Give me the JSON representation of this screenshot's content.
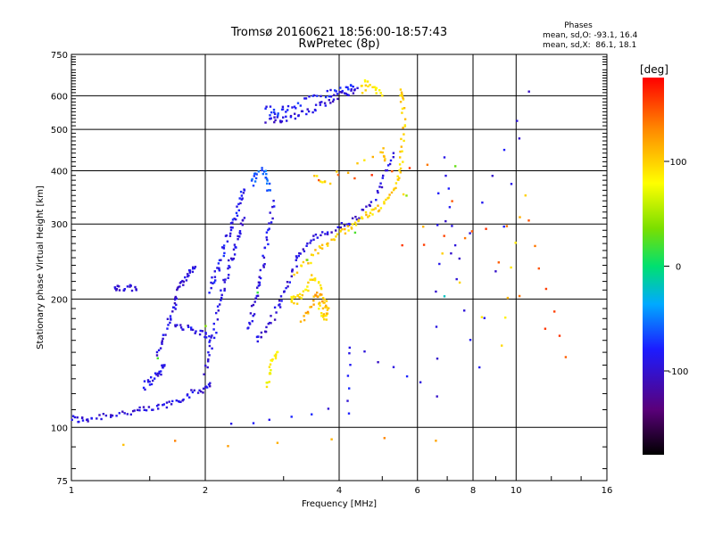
{
  "chart_data": {
    "type": "scatter",
    "title": "Tromsø 20160621 18:56:00-18:57:43",
    "subtitle": "RwPretec (8p)",
    "xlabel": "Frequency [MHz]",
    "ylabel": "Stationary phase Virtual Height [km]",
    "x_scale": "log",
    "y_scale": "log",
    "xlim": [
      1,
      16
    ],
    "ylim": [
      75,
      750
    ],
    "x_ticks": [
      1,
      2,
      4,
      6,
      8,
      10,
      16
    ],
    "x_tick_labels": [
      "1",
      "2",
      "4",
      "6",
      "8",
      "10",
      "16"
    ],
    "y_ticks": [
      75,
      100,
      200,
      300,
      400,
      500,
      600,
      750
    ],
    "y_tick_labels": [
      "75",
      "100",
      "200",
      "300",
      "400",
      "500",
      "600",
      "750"
    ],
    "grid": true,
    "stats": {
      "heading": "Phases",
      "line_o": "mean, sd,O: -93.1, 16.4",
      "line_x": "mean, sd,X:  86.1, 18.1"
    },
    "colorbar": {
      "label": "[deg]",
      "range": [
        -180,
        180
      ],
      "ticks": [
        100,
        0,
        -100
      ],
      "tick_labels": [
        "100",
        "0",
        "-100"
      ]
    },
    "traces": [
      {
        "phase": -95,
        "points": [
          [
            1.0,
            105
          ],
          [
            1.05,
            104
          ],
          [
            1.1,
            105
          ],
          [
            1.2,
            107
          ],
          [
            1.3,
            108
          ],
          [
            1.4,
            109
          ],
          [
            1.5,
            110
          ],
          [
            1.6,
            112
          ],
          [
            1.7,
            115
          ],
          [
            1.8,
            118
          ],
          [
            1.9,
            121
          ],
          [
            2.0,
            124
          ],
          [
            2.05,
            127
          ]
        ]
      },
      {
        "phase": -90,
        "points": [
          [
            1.45,
            125
          ],
          [
            1.5,
            128
          ],
          [
            1.55,
            132
          ],
          [
            1.6,
            136
          ],
          [
            1.62,
            140
          ]
        ]
      },
      {
        "phase": -95,
        "points": [
          [
            1.55,
            148
          ],
          [
            1.6,
            160
          ],
          [
            1.65,
            175
          ],
          [
            1.7,
            190
          ],
          [
            1.72,
            200
          ],
          [
            1.75,
            215
          ],
          [
            1.8,
            225
          ],
          [
            1.85,
            232
          ],
          [
            1.9,
            238
          ]
        ]
      },
      {
        "phase": -95,
        "points": [
          [
            1.25,
            210
          ],
          [
            1.28,
            212
          ],
          [
            1.35,
            212
          ],
          [
            1.4,
            210
          ]
        ]
      },
      {
        "phase": -90,
        "points": [
          [
            1.7,
            175
          ],
          [
            1.8,
            172
          ],
          [
            1.9,
            168
          ],
          [
            2.0,
            165
          ],
          [
            2.05,
            160
          ]
        ]
      },
      {
        "phase": -95,
        "points": [
          [
            2.0,
            135
          ],
          [
            2.05,
            150
          ],
          [
            2.1,
            170
          ],
          [
            2.15,
            195
          ],
          [
            2.2,
            215
          ],
          [
            2.25,
            235
          ],
          [
            2.3,
            250
          ],
          [
            2.35,
            270
          ],
          [
            2.4,
            290
          ],
          [
            2.45,
            310
          ]
        ]
      },
      {
        "phase": -90,
        "points": [
          [
            2.5,
            170
          ],
          [
            2.55,
            185
          ],
          [
            2.6,
            200
          ],
          [
            2.65,
            220
          ],
          [
            2.7,
            240
          ],
          [
            2.75,
            270
          ],
          [
            2.8,
            300
          ],
          [
            2.85,
            340
          ]
        ]
      },
      {
        "phase": -95,
        "points": [
          [
            2.6,
            160
          ],
          [
            2.7,
            165
          ],
          [
            2.8,
            175
          ],
          [
            2.9,
            190
          ],
          [
            3.0,
            205
          ],
          [
            3.1,
            225
          ],
          [
            3.2,
            245
          ],
          [
            3.3,
            262
          ],
          [
            3.5,
            275
          ],
          [
            3.7,
            285
          ],
          [
            4.0,
            295
          ],
          [
            4.3,
            305
          ],
          [
            4.6,
            325
          ],
          [
            4.9,
            355
          ],
          [
            5.1,
            395
          ],
          [
            5.3,
            440
          ]
        ]
      },
      {
        "phase": -95,
        "points": [
          [
            2.75,
            520
          ],
          [
            2.9,
            525
          ],
          [
            3.0,
            530
          ],
          [
            3.2,
            540
          ],
          [
            3.4,
            555
          ],
          [
            3.6,
            568
          ],
          [
            3.8,
            585
          ],
          [
            4.0,
            600
          ],
          [
            4.2,
            615
          ],
          [
            4.4,
            625
          ]
        ]
      },
      {
        "phase": -80,
        "points": [
          [
            2.75,
            560
          ],
          [
            2.85,
            545
          ],
          [
            3.0,
            555
          ],
          [
            3.2,
            570
          ],
          [
            3.5,
            590
          ],
          [
            3.8,
            610
          ],
          [
            4.1,
            620
          ],
          [
            4.3,
            630
          ]
        ]
      },
      {
        "phase": -60,
        "points": [
          [
            2.55,
            370
          ],
          [
            2.6,
            390
          ],
          [
            2.7,
            400
          ],
          [
            2.75,
            380
          ],
          [
            2.8,
            360
          ]
        ]
      },
      {
        "phase": -85,
        "points": [
          [
            2.05,
            210
          ],
          [
            2.1,
            225
          ],
          [
            2.15,
            240
          ],
          [
            2.2,
            262
          ],
          [
            2.25,
            280
          ],
          [
            2.3,
            300
          ],
          [
            2.35,
            320
          ],
          [
            2.4,
            345
          ],
          [
            2.45,
            360
          ]
        ]
      },
      {
        "phase": 95,
        "points": [
          [
            3.1,
            200
          ],
          [
            3.2,
            198
          ],
          [
            3.3,
            205
          ],
          [
            3.4,
            215
          ],
          [
            3.5,
            225
          ],
          [
            3.6,
            215
          ],
          [
            3.7,
            200
          ],
          [
            3.8,
            185
          ],
          [
            3.7,
            180
          ],
          [
            3.6,
            195
          ]
        ]
      },
      {
        "phase": 100,
        "points": [
          [
            3.2,
            230
          ],
          [
            3.4,
            245
          ],
          [
            3.6,
            262
          ],
          [
            3.8,
            272
          ],
          [
            4.0,
            285
          ],
          [
            4.2,
            295
          ],
          [
            4.4,
            305
          ],
          [
            4.6,
            315
          ],
          [
            4.8,
            320
          ],
          [
            5.0,
            330
          ],
          [
            5.2,
            350
          ],
          [
            5.4,
            375
          ],
          [
            5.5,
            410
          ],
          [
            5.55,
            460
          ],
          [
            5.6,
            520
          ],
          [
            5.55,
            580
          ],
          [
            5.5,
            620
          ]
        ]
      },
      {
        "phase": 115,
        "points": [
          [
            3.3,
            180
          ],
          [
            3.45,
            190
          ],
          [
            3.55,
            205
          ],
          [
            3.65,
            200
          ],
          [
            3.75,
            185
          ]
        ]
      },
      {
        "phase": 80,
        "points": [
          [
            2.75,
            125
          ],
          [
            2.8,
            135
          ],
          [
            2.85,
            145
          ],
          [
            2.9,
            150
          ]
        ]
      },
      {
        "phase": 90,
        "points": [
          [
            4.5,
            620
          ],
          [
            4.6,
            640
          ],
          [
            4.8,
            630
          ],
          [
            5.0,
            600
          ]
        ]
      },
      {
        "phase": 100,
        "points": [
          [
            3.5,
            385
          ],
          [
            3.8,
            380
          ],
          [
            5.0,
            450
          ],
          [
            5.05,
            420
          ],
          [
            9.2,
            155
          ],
          [
            10.5,
            350
          ]
        ]
      },
      {
        "phase": 150,
        "points": [
          [
            5.6,
            265
          ],
          [
            10.6,
            300
          ],
          [
            13.0,
            145
          ],
          [
            6.3,
            410
          ],
          [
            3.6,
            380
          ]
        ]
      },
      {
        "phase": -90,
        "points": [
          [
            2.3,
            102
          ],
          [
            4.2,
            110
          ],
          [
            4.2,
            155
          ],
          [
            6.6,
            120
          ],
          [
            6.7,
            350
          ],
          [
            8.2,
            140
          ],
          [
            10.6,
            610
          ],
          [
            7.4,
            245
          ],
          [
            6.9,
            430
          ]
        ]
      },
      {
        "phase": -20,
        "points": [
          [
            6.9,
            203
          ]
        ]
      },
      {
        "phase": 30,
        "points": [
          [
            1.55,
            145
          ],
          [
            7.3,
            410
          ]
        ]
      },
      {
        "phase": 120,
        "points": [
          [
            1.3,
            91
          ],
          [
            6.6,
            93
          ]
        ]
      }
    ]
  }
}
